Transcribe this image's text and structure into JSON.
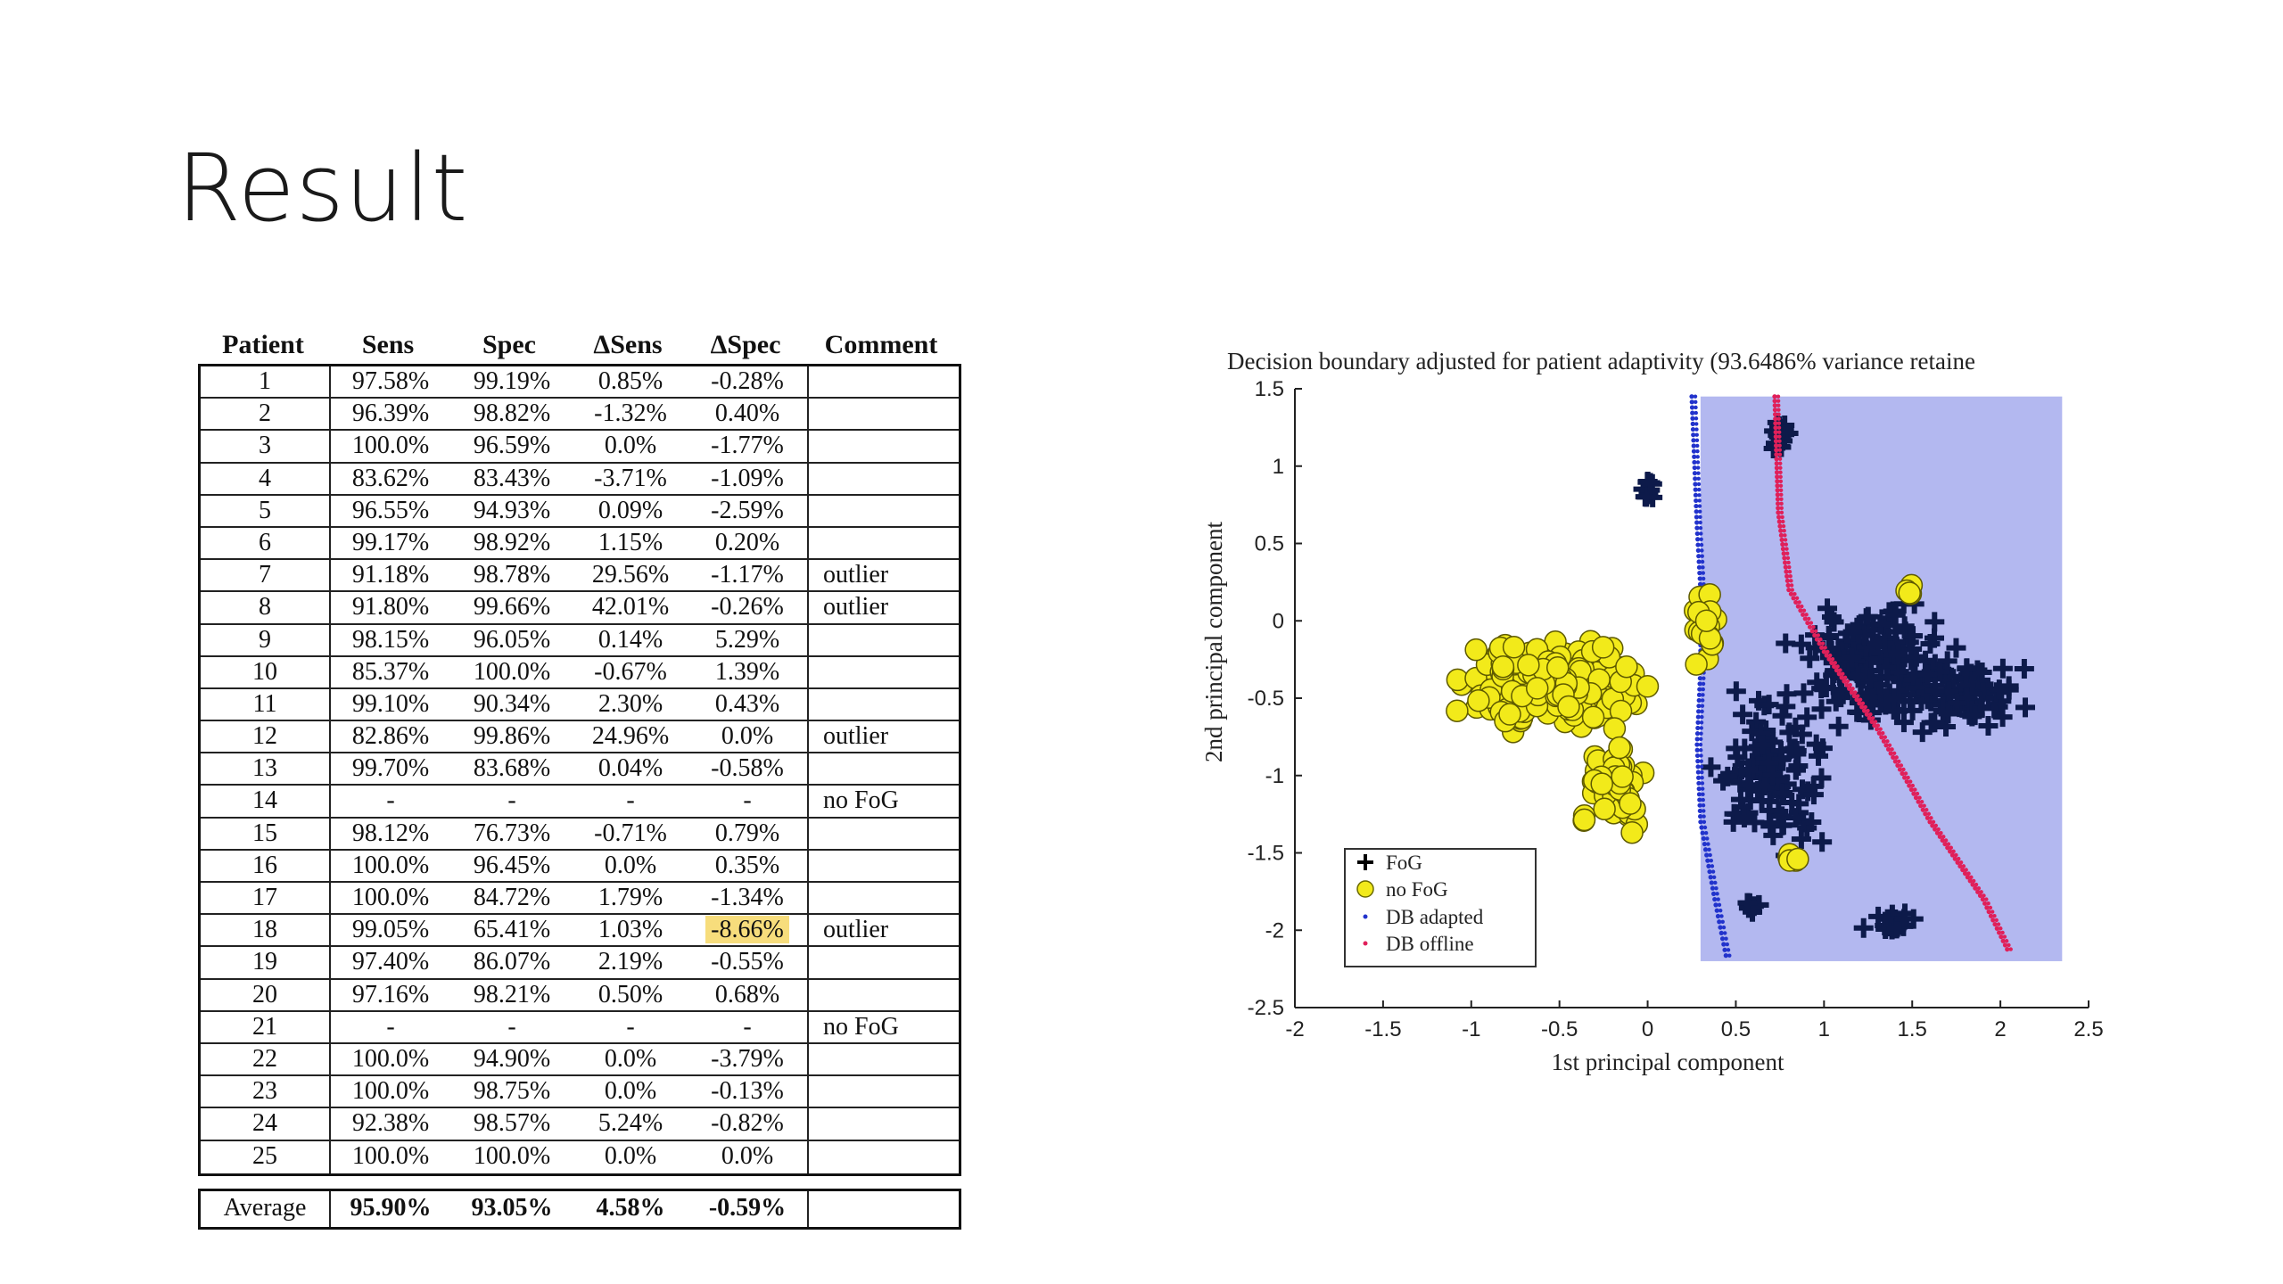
{
  "slide": {
    "title": "Result"
  },
  "table": {
    "headers": [
      "Patient",
      "Sens",
      "Spec",
      "ΔSens",
      "ΔSpec",
      "Comment"
    ],
    "rows": [
      [
        "1",
        "97.58%",
        "99.19%",
        "0.85%",
        "-0.28%",
        ""
      ],
      [
        "2",
        "96.39%",
        "98.82%",
        "-1.32%",
        "0.40%",
        ""
      ],
      [
        "3",
        "100.0%",
        "96.59%",
        "0.0%",
        "-1.77%",
        ""
      ],
      [
        "4",
        "83.62%",
        "83.43%",
        "-3.71%",
        "-1.09%",
        ""
      ],
      [
        "5",
        "96.55%",
        "94.93%",
        "0.09%",
        "-2.59%",
        ""
      ],
      [
        "6",
        "99.17%",
        "98.92%",
        "1.15%",
        "0.20%",
        ""
      ],
      [
        "7",
        "91.18%",
        "98.78%",
        "29.56%",
        "-1.17%",
        "outlier"
      ],
      [
        "8",
        "91.80%",
        "99.66%",
        "42.01%",
        "-0.26%",
        "outlier"
      ],
      [
        "9",
        "98.15%",
        "96.05%",
        "0.14%",
        "5.29%",
        ""
      ],
      [
        "10",
        "85.37%",
        "100.0%",
        "-0.67%",
        "1.39%",
        ""
      ],
      [
        "11",
        "99.10%",
        "90.34%",
        "2.30%",
        "0.43%",
        ""
      ],
      [
        "12",
        "82.86%",
        "99.86%",
        "24.96%",
        "0.0%",
        "outlier"
      ],
      [
        "13",
        "99.70%",
        "83.68%",
        "0.04%",
        "-0.58%",
        ""
      ],
      [
        "14",
        "-",
        "-",
        "-",
        "-",
        "no FoG"
      ],
      [
        "15",
        "98.12%",
        "76.73%",
        "-0.71%",
        "0.79%",
        ""
      ],
      [
        "16",
        "100.0%",
        "96.45%",
        "0.0%",
        "0.35%",
        ""
      ],
      [
        "17",
        "100.0%",
        "84.72%",
        "1.79%",
        "-1.34%",
        ""
      ],
      [
        "18",
        "99.05%",
        "65.41%",
        "1.03%",
        "-8.66%",
        "outlier"
      ],
      [
        "19",
        "97.40%",
        "86.07%",
        "2.19%",
        "-0.55%",
        ""
      ],
      [
        "20",
        "97.16%",
        "98.21%",
        "0.50%",
        "0.68%",
        ""
      ],
      [
        "21",
        "-",
        "-",
        "-",
        "-",
        "no FoG"
      ],
      [
        "22",
        "100.0%",
        "94.90%",
        "0.0%",
        "-3.79%",
        ""
      ],
      [
        "23",
        "100.0%",
        "98.75%",
        "0.0%",
        "-0.13%",
        ""
      ],
      [
        "24",
        "92.38%",
        "98.57%",
        "5.24%",
        "-0.82%",
        ""
      ],
      [
        "25",
        "100.0%",
        "100.0%",
        "0.0%",
        "0.0%",
        ""
      ]
    ],
    "highlighted_cell": {
      "row": 17,
      "col": 4,
      "color": "#f7dd7c"
    },
    "average": [
      "Average",
      "95.90%",
      "93.05%",
      "4.58%",
      "-0.59%",
      ""
    ]
  },
  "chart_data": {
    "type": "scatter",
    "title": "Decision boundary adjusted for patient adaptivity (93.6486% variance retaine",
    "xlabel": "1st principal component",
    "ylabel": "2nd principal component",
    "xlim": [
      -2,
      2.5
    ],
    "ylim": [
      -2.5,
      1.5
    ],
    "xticks": [
      "-2",
      "-1.5",
      "-1",
      "-0.5",
      "0",
      "0.5",
      "1",
      "1.5",
      "2",
      "2.5"
    ],
    "yticks": [
      "1.5",
      "1",
      "0.5",
      "0",
      "-0.5",
      "-1",
      "-1.5",
      "-2",
      "-2.5"
    ],
    "legend_position": "bottom-left",
    "legend": [
      "FoG",
      "no FoG",
      "DB adapted",
      "DB offline"
    ],
    "colors": {
      "fog": "#0d1a4a",
      "nofog": "#f2ea1a",
      "db_adapted": "#2233cc",
      "db_offline": "#e0205a",
      "region": "#b3b8f0"
    },
    "region_fog": {
      "x": [
        0.3,
        2.35
      ],
      "y": [
        -2.2,
        1.45
      ]
    },
    "db_adapted_line": [
      [
        0.25,
        1.45
      ],
      [
        0.28,
        0.6
      ],
      [
        0.3,
        0.2
      ],
      [
        0.3,
        -0.3
      ],
      [
        0.28,
        -0.8
      ],
      [
        0.3,
        -1.3
      ],
      [
        0.38,
        -1.8
      ],
      [
        0.45,
        -2.2
      ]
    ],
    "db_offline_line": [
      [
        0.72,
        1.45
      ],
      [
        0.74,
        0.7
      ],
      [
        0.8,
        0.2
      ],
      [
        1.0,
        -0.2
      ],
      [
        1.3,
        -0.7
      ],
      [
        1.6,
        -1.3
      ],
      [
        1.9,
        -1.8
      ],
      [
        2.05,
        -2.15
      ]
    ],
    "fog_clusters": [
      {
        "cx": 1.3,
        "cy": -0.3,
        "rx": 0.65,
        "ry": 0.55,
        "n": 180
      },
      {
        "cx": 0.7,
        "cy": -1.0,
        "rx": 0.45,
        "ry": 0.7,
        "n": 120
      },
      {
        "cx": 1.8,
        "cy": -0.5,
        "rx": 0.45,
        "ry": 0.4,
        "n": 70
      },
      {
        "cx": 0.75,
        "cy": 1.2,
        "rx": 0.1,
        "ry": 0.15,
        "n": 14
      },
      {
        "cx": 1.4,
        "cy": -1.95,
        "rx": 0.25,
        "ry": 0.1,
        "n": 18
      },
      {
        "cx": 0.0,
        "cy": 0.85,
        "rx": 0.06,
        "ry": 0.12,
        "n": 10
      },
      {
        "cx": 0.6,
        "cy": -1.85,
        "rx": 0.1,
        "ry": 0.12,
        "n": 8
      }
    ],
    "nofog_clusters": [
      {
        "cx": -0.55,
        "cy": -0.4,
        "rx": 0.7,
        "ry": 0.45,
        "n": 260
      },
      {
        "cx": -0.2,
        "cy": -1.05,
        "rx": 0.3,
        "ry": 0.4,
        "n": 60
      },
      {
        "cx": 0.35,
        "cy": -0.05,
        "rx": 0.14,
        "ry": 0.3,
        "n": 20
      },
      {
        "cx": 1.5,
        "cy": 0.2,
        "rx": 0.08,
        "ry": 0.1,
        "n": 5
      },
      {
        "cx": 0.8,
        "cy": -1.55,
        "rx": 0.1,
        "ry": 0.1,
        "n": 5
      }
    ]
  }
}
